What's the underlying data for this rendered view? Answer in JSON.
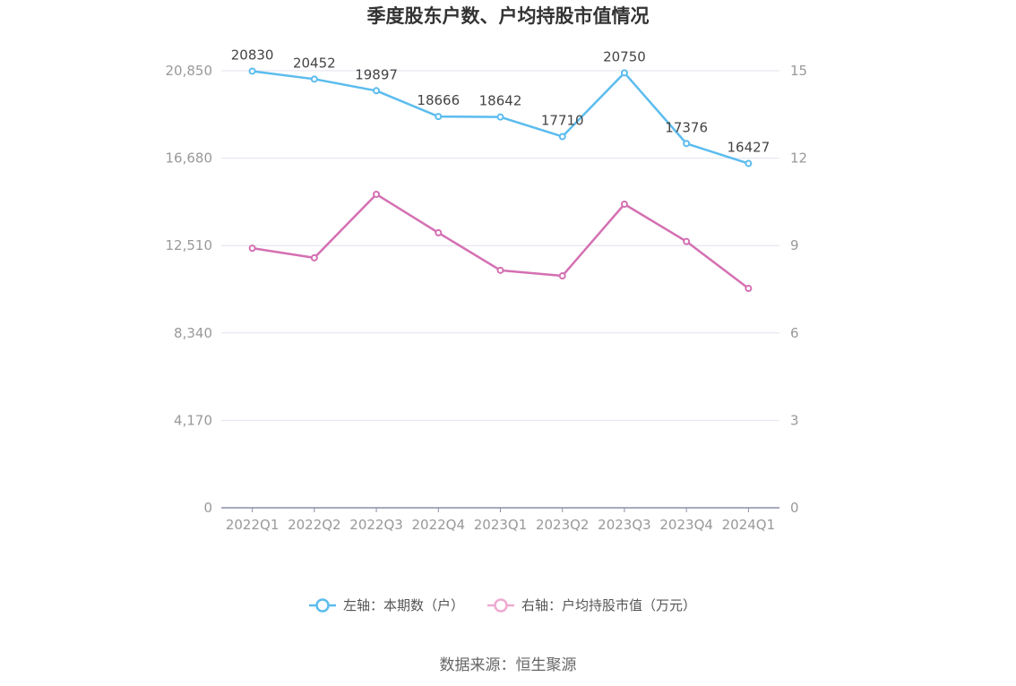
{
  "chart_data": {
    "type": "line",
    "title": "季度股东户数、户均持股市值情况",
    "categories": [
      "2022Q1",
      "2022Q2",
      "2022Q3",
      "2022Q4",
      "2023Q1",
      "2023Q2",
      "2023Q3",
      "2023Q4",
      "2024Q1"
    ],
    "left_axis": {
      "ticks": [
        "0",
        "4,170",
        "8,340",
        "12,510",
        "16,680",
        "20,850"
      ],
      "ylim": [
        0,
        20850
      ]
    },
    "right_axis": {
      "ticks": [
        "0",
        "3",
        "6",
        "9",
        "12",
        "15"
      ],
      "ylim": [
        0,
        15
      ]
    },
    "series": [
      {
        "name": "左轴：本期数（户）",
        "axis": "left",
        "color": "#5bbcee",
        "values": [
          20830,
          20452,
          19897,
          18666,
          18642,
          17710,
          20750,
          17376,
          16427
        ],
        "labels": [
          "20830",
          "20452",
          "19897",
          "18666",
          "18642",
          "17710",
          "20750",
          "17376",
          "16427"
        ]
      },
      {
        "name": "右轴：户均持股市值（万元）",
        "axis": "right",
        "color": "#d470b2",
        "legend_color": "#eeaad2",
        "values": [
          8.91,
          8.58,
          10.76,
          9.44,
          8.15,
          7.96,
          10.42,
          9.14,
          7.53
        ]
      }
    ],
    "grid": true,
    "legend_position": "bottom"
  },
  "source": "数据来源：恒生聚源"
}
